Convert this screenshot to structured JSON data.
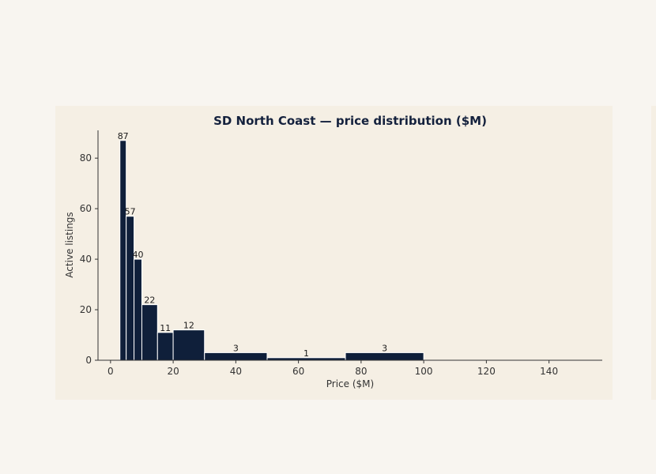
{
  "chart_data": {
    "type": "bar",
    "title": "SD North Coast — price distribution ($M)",
    "xlabel": "Price ($M)",
    "ylabel": "Active listings",
    "xlim": [
      -4,
      157
    ],
    "ylim": [
      0,
      91
    ],
    "xticks": [
      0,
      20,
      40,
      60,
      80,
      100,
      120,
      140
    ],
    "yticks": [
      0,
      20,
      40,
      60,
      80
    ],
    "bins": [
      {
        "x0": 3,
        "x1": 5,
        "value": 87
      },
      {
        "x0": 5,
        "x1": 7.5,
        "value": 57
      },
      {
        "x0": 7.5,
        "x1": 10,
        "value": 40
      },
      {
        "x0": 10,
        "x1": 15,
        "value": 22
      },
      {
        "x0": 15,
        "x1": 20,
        "value": 11
      },
      {
        "x0": 20,
        "x1": 30,
        "value": 12
      },
      {
        "x0": 30,
        "x1": 50,
        "value": 3
      },
      {
        "x0": 50,
        "x1": 75,
        "value": 1
      },
      {
        "x0": 75,
        "x1": 100,
        "value": 3
      }
    ],
    "bar_color": "#0f1f3a",
    "background": "#f5efe4",
    "grid": false
  }
}
